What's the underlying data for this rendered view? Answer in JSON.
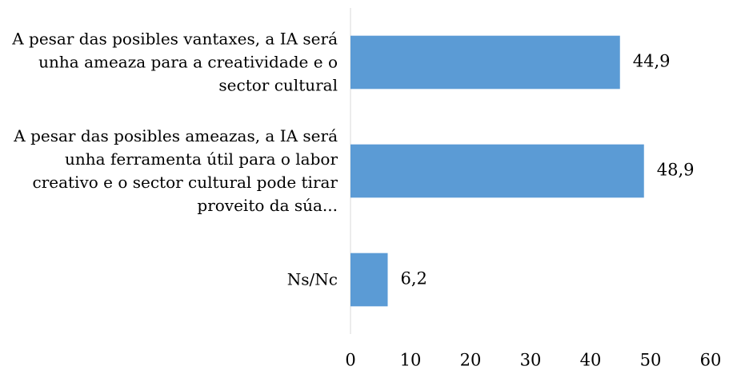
{
  "chart_data": {
    "type": "bar",
    "orientation": "horizontal",
    "categories": [
      "A pesar das posibles vantaxes, a IA será unha ameaza para a creatividade e o sector cultural",
      "A pesar das posibles ameazas, a IA será unha ferramenta útil para o labor creativo e o sector cultural pode tirar proveito da súa...",
      "Ns/Nc"
    ],
    "values": [
      44.9,
      48.9,
      6.2
    ],
    "value_labels": [
      "44,9",
      "48,9",
      "6,2"
    ],
    "color": "#5b9bd5",
    "xlim": [
      0,
      60
    ],
    "xticks": [
      0,
      10,
      20,
      30,
      40,
      50,
      60
    ],
    "grid": false
  }
}
